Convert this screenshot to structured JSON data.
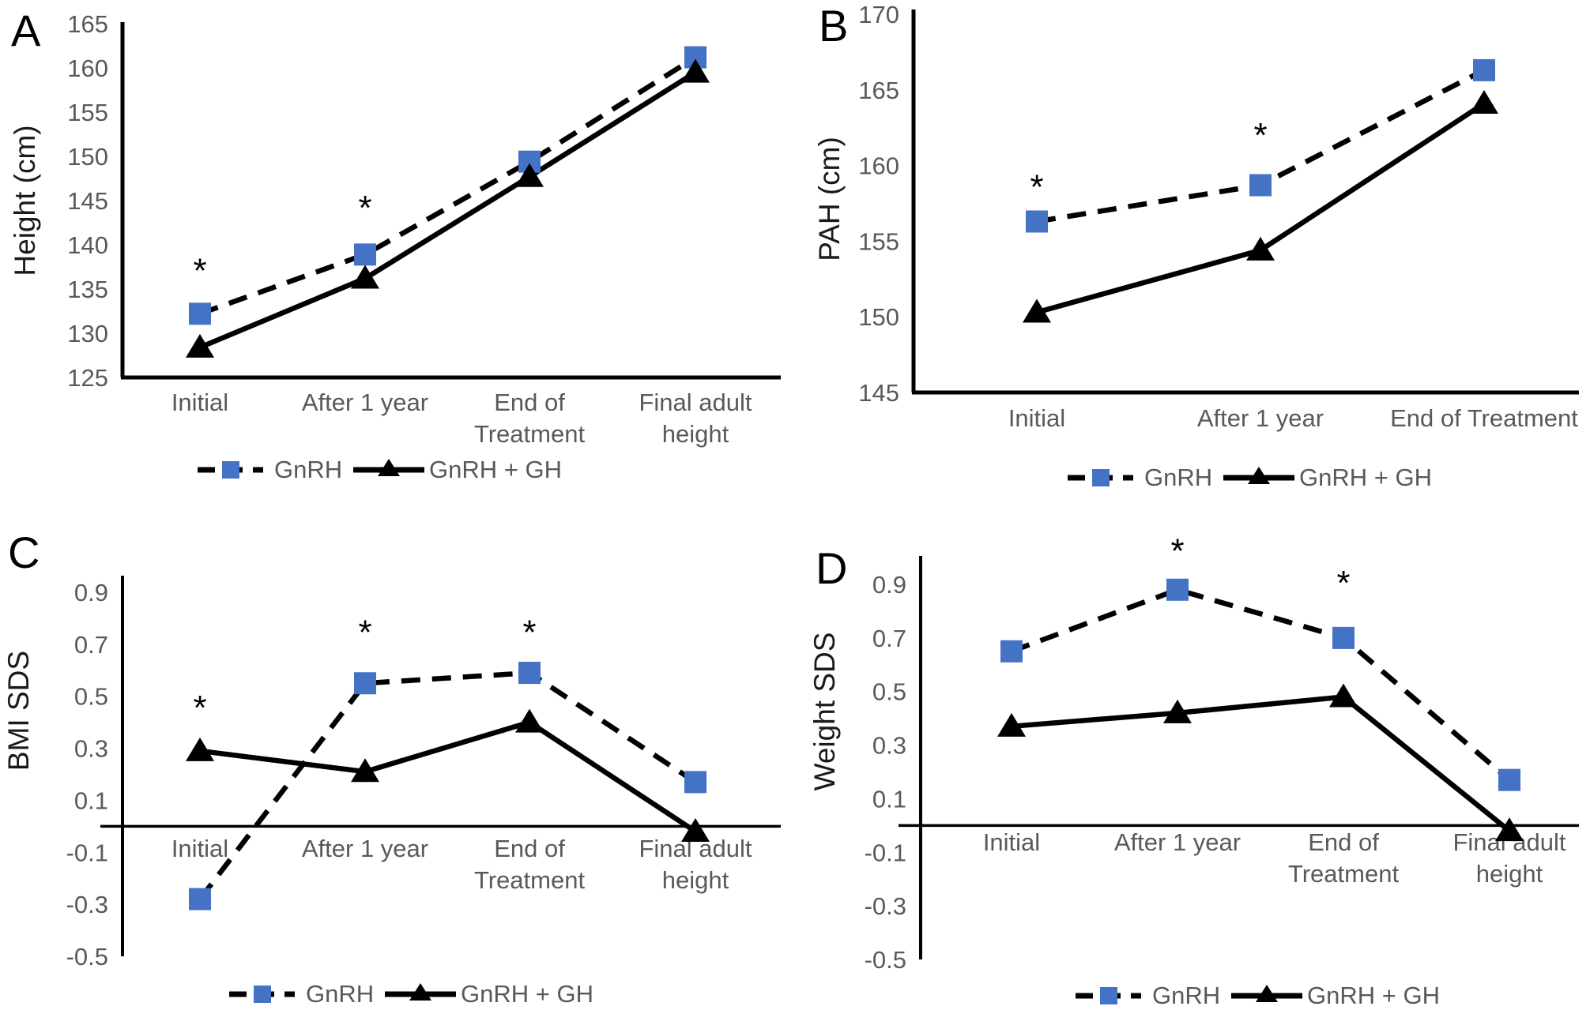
{
  "figure": {
    "background": "#ffffff",
    "accent_blue": "#4472C4",
    "text_gray": "#595959",
    "axis_black": "#000000",
    "significance_symbol": "*"
  },
  "legend": {
    "items": [
      "GnRH",
      "GnRH + GH"
    ]
  },
  "chart_data": [
    {
      "panel_label": "A",
      "type": "line",
      "ylabel": "Height (cm)",
      "xlabel": "",
      "ylim": [
        125,
        165
      ],
      "ytick_labels": [
        "165",
        "160",
        "155",
        "150",
        "145",
        "140",
        "135",
        "130",
        "125"
      ],
      "categories": [
        "Initial",
        "After 1 year",
        "End of\nTreatment",
        "Final adult\nheight"
      ],
      "grid": false,
      "legend_position": "bottom",
      "zero_axis": false,
      "series": [
        {
          "name": "GnRH",
          "marker": "square",
          "line_style": "dashed",
          "color": "#4472C4",
          "values": [
            132.2,
            138.9,
            149.4,
            161.2
          ]
        },
        {
          "name": "GnRH + GH",
          "marker": "triangle",
          "line_style": "solid",
          "color": "#000000",
          "values": [
            128.4,
            136.2,
            147.7,
            159.5
          ]
        }
      ],
      "significance_marks": [
        {
          "category_index": 0,
          "y": 136.9
        },
        {
          "category_index": 1,
          "y": 144.0
        }
      ]
    },
    {
      "panel_label": "B",
      "type": "line",
      "ylabel": "PAH (cm)",
      "xlabel": "",
      "ylim": [
        145,
        170
      ],
      "ytick_labels": [
        "170",
        "165",
        "160",
        "155",
        "150",
        "145"
      ],
      "categories": [
        "Initial",
        "After 1 year",
        "End of Treatment"
      ],
      "grid": false,
      "legend_position": "bottom",
      "zero_axis": false,
      "series": [
        {
          "name": "GnRH",
          "marker": "square",
          "line_style": "dashed",
          "color": "#4472C4",
          "values": [
            156.3,
            158.7,
            166.3
          ]
        },
        {
          "name": "GnRH + GH",
          "marker": "triangle",
          "line_style": "solid",
          "color": "#000000",
          "values": [
            150.3,
            154.4,
            164.1
          ]
        }
      ],
      "significance_marks": [
        {
          "category_index": 0,
          "y": 158.5
        },
        {
          "category_index": 1,
          "y": 161.9
        }
      ]
    },
    {
      "panel_label": "C",
      "type": "line",
      "ylabel": "BMI SDS",
      "xlabel": "",
      "ylim": [
        -0.5,
        0.9
      ],
      "ytick_labels": [
        "0.9",
        "0.7",
        "0.5",
        "0.3",
        "0.1",
        "-0.1",
        "-0.3",
        "-0.5"
      ],
      "categories": [
        "Initial",
        "After 1 year",
        "End of\nTreatment",
        "Final adult\nheight"
      ],
      "grid": false,
      "legend_position": "bottom",
      "zero_axis": true,
      "series": [
        {
          "name": "GnRH",
          "marker": "square",
          "line_style": "dashed",
          "color": "#4472C4",
          "values": [
            -0.28,
            0.55,
            0.59,
            0.17
          ]
        },
        {
          "name": "GnRH + GH",
          "marker": "triangle",
          "line_style": "solid",
          "color": "#000000",
          "values": [
            0.29,
            0.21,
            0.4,
            -0.02
          ]
        }
      ],
      "significance_marks": [
        {
          "category_index": 0,
          "y": 0.45
        },
        {
          "category_index": 1,
          "y": 0.74
        },
        {
          "category_index": 2,
          "y": 0.74
        }
      ]
    },
    {
      "panel_label": "D",
      "type": "line",
      "ylabel": "Weight SDS",
      "xlabel": "",
      "ylim": [
        -0.5,
        0.9
      ],
      "ytick_labels": [
        "0.9",
        "0.7",
        "0.5",
        "0.3",
        "0.1",
        "-0.1",
        "-0.3",
        "-0.5"
      ],
      "categories": [
        "Initial",
        "After 1 year",
        "End of\nTreatment",
        "Final adult\nheight"
      ],
      "grid": false,
      "legend_position": "bottom",
      "zero_axis": true,
      "series": [
        {
          "name": "GnRH",
          "marker": "square",
          "line_style": "dashed",
          "color": "#4472C4",
          "values": [
            0.65,
            0.88,
            0.7,
            0.17
          ]
        },
        {
          "name": "GnRH + GH",
          "marker": "triangle",
          "line_style": "solid",
          "color": "#000000",
          "values": [
            0.37,
            0.42,
            0.48,
            -0.02
          ]
        }
      ],
      "significance_marks": [
        {
          "category_index": 1,
          "y": 1.02
        },
        {
          "category_index": 2,
          "y": 0.9
        }
      ]
    }
  ]
}
